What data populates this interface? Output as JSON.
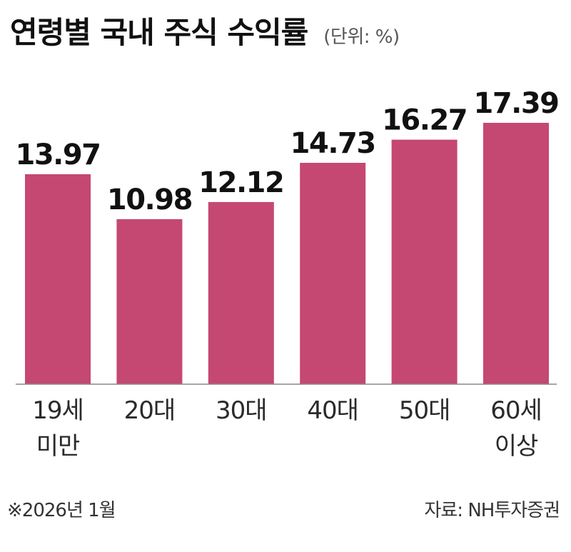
{
  "title": "연령별 국내 주식 수익률",
  "unit_label": "(단위: %)",
  "footnote": "※2026년 1월",
  "source": "자료: NH투자증권",
  "colors": {
    "bar": "#c54872",
    "baseline": "#888888"
  },
  "chart_data": {
    "type": "bar",
    "title": "연령별 국내 주식 수익률",
    "unit": "%",
    "categories": [
      [
        "19세",
        "미만"
      ],
      [
        "20대"
      ],
      [
        "30대"
      ],
      [
        "40대"
      ],
      [
        "50대"
      ],
      [
        "60세",
        "이상"
      ]
    ],
    "values": [
      13.97,
      10.98,
      12.12,
      14.73,
      16.27,
      17.39
    ],
    "value_labels": [
      "13.97",
      "10.98",
      "12.12",
      "14.73",
      "16.27",
      "17.39"
    ],
    "ylim": [
      0,
      17.39
    ],
    "grid": false,
    "legend": false
  }
}
